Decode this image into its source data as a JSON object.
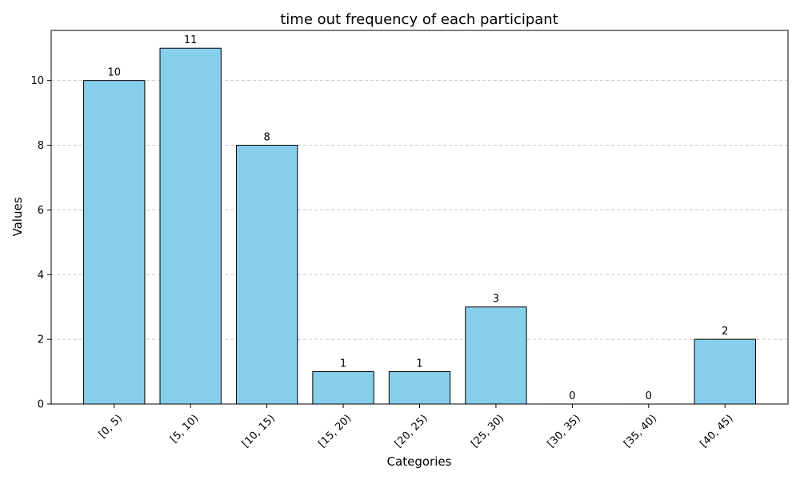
{
  "chart_data": {
    "type": "bar",
    "title": "time out frequency of each participant",
    "xlabel": "Categories",
    "ylabel": "Values",
    "categories": [
      "[0, 5)",
      "[5, 10)",
      "[10, 15)",
      "[15, 20)",
      "[20, 25)",
      "[25, 30)",
      "[30, 35)",
      "[35, 40)",
      "[40, 45)"
    ],
    "values": [
      10,
      11,
      8,
      1,
      1,
      3,
      0,
      0,
      2
    ],
    "ylim": [
      0,
      11.55
    ],
    "yticks": [
      0,
      2,
      4,
      6,
      8,
      10
    ],
    "grid": "y-dashed",
    "bar_color": "#87ceeb",
    "edge_color": "#000000",
    "grid_color": "#c8c8c8"
  }
}
